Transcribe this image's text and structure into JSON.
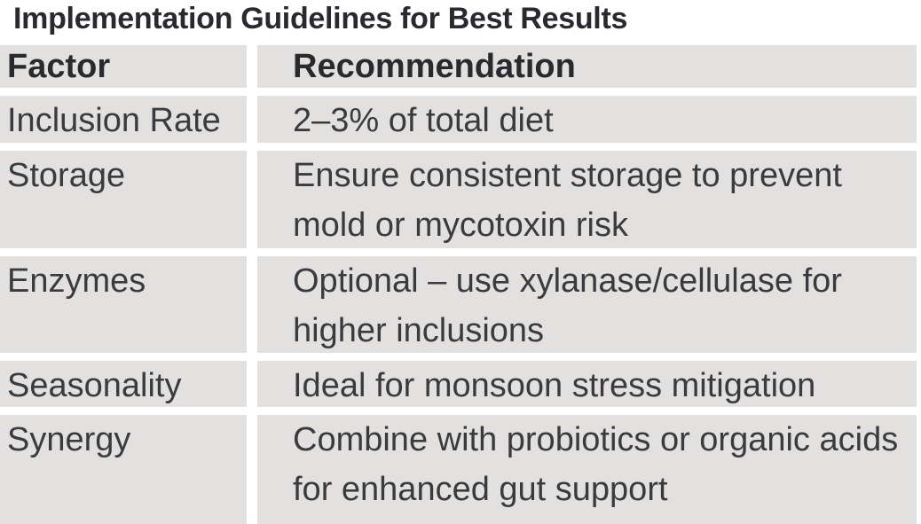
{
  "title": "Implementation Guidelines for Best Results",
  "colors": {
    "cell_background": "#e2e1df",
    "page_background": "#ffffff",
    "text": "#3b3a3e",
    "heading_text": "#2a292e"
  },
  "table": {
    "columns": [
      {
        "key": "factor",
        "label": "Factor"
      },
      {
        "key": "recommendation",
        "label": "Recommendation"
      }
    ],
    "rows": [
      {
        "factor": "Inclusion Rate",
        "recommendation": "2–3% of total diet"
      },
      {
        "factor": "Storage",
        "recommendation": "Ensure consistent storage to prevent\nmold or mycotoxin risk"
      },
      {
        "factor": "Enzymes",
        "recommendation": "Optional – use xylanase/cellulase for\nhigher inclusions"
      },
      {
        "factor": "Seasonality",
        "recommendation": "Ideal for monsoon stress mitigation"
      },
      {
        "factor": "Synergy",
        "recommendation": "Combine with probiotics or organic acids\nfor enhanced gut support"
      }
    ]
  }
}
